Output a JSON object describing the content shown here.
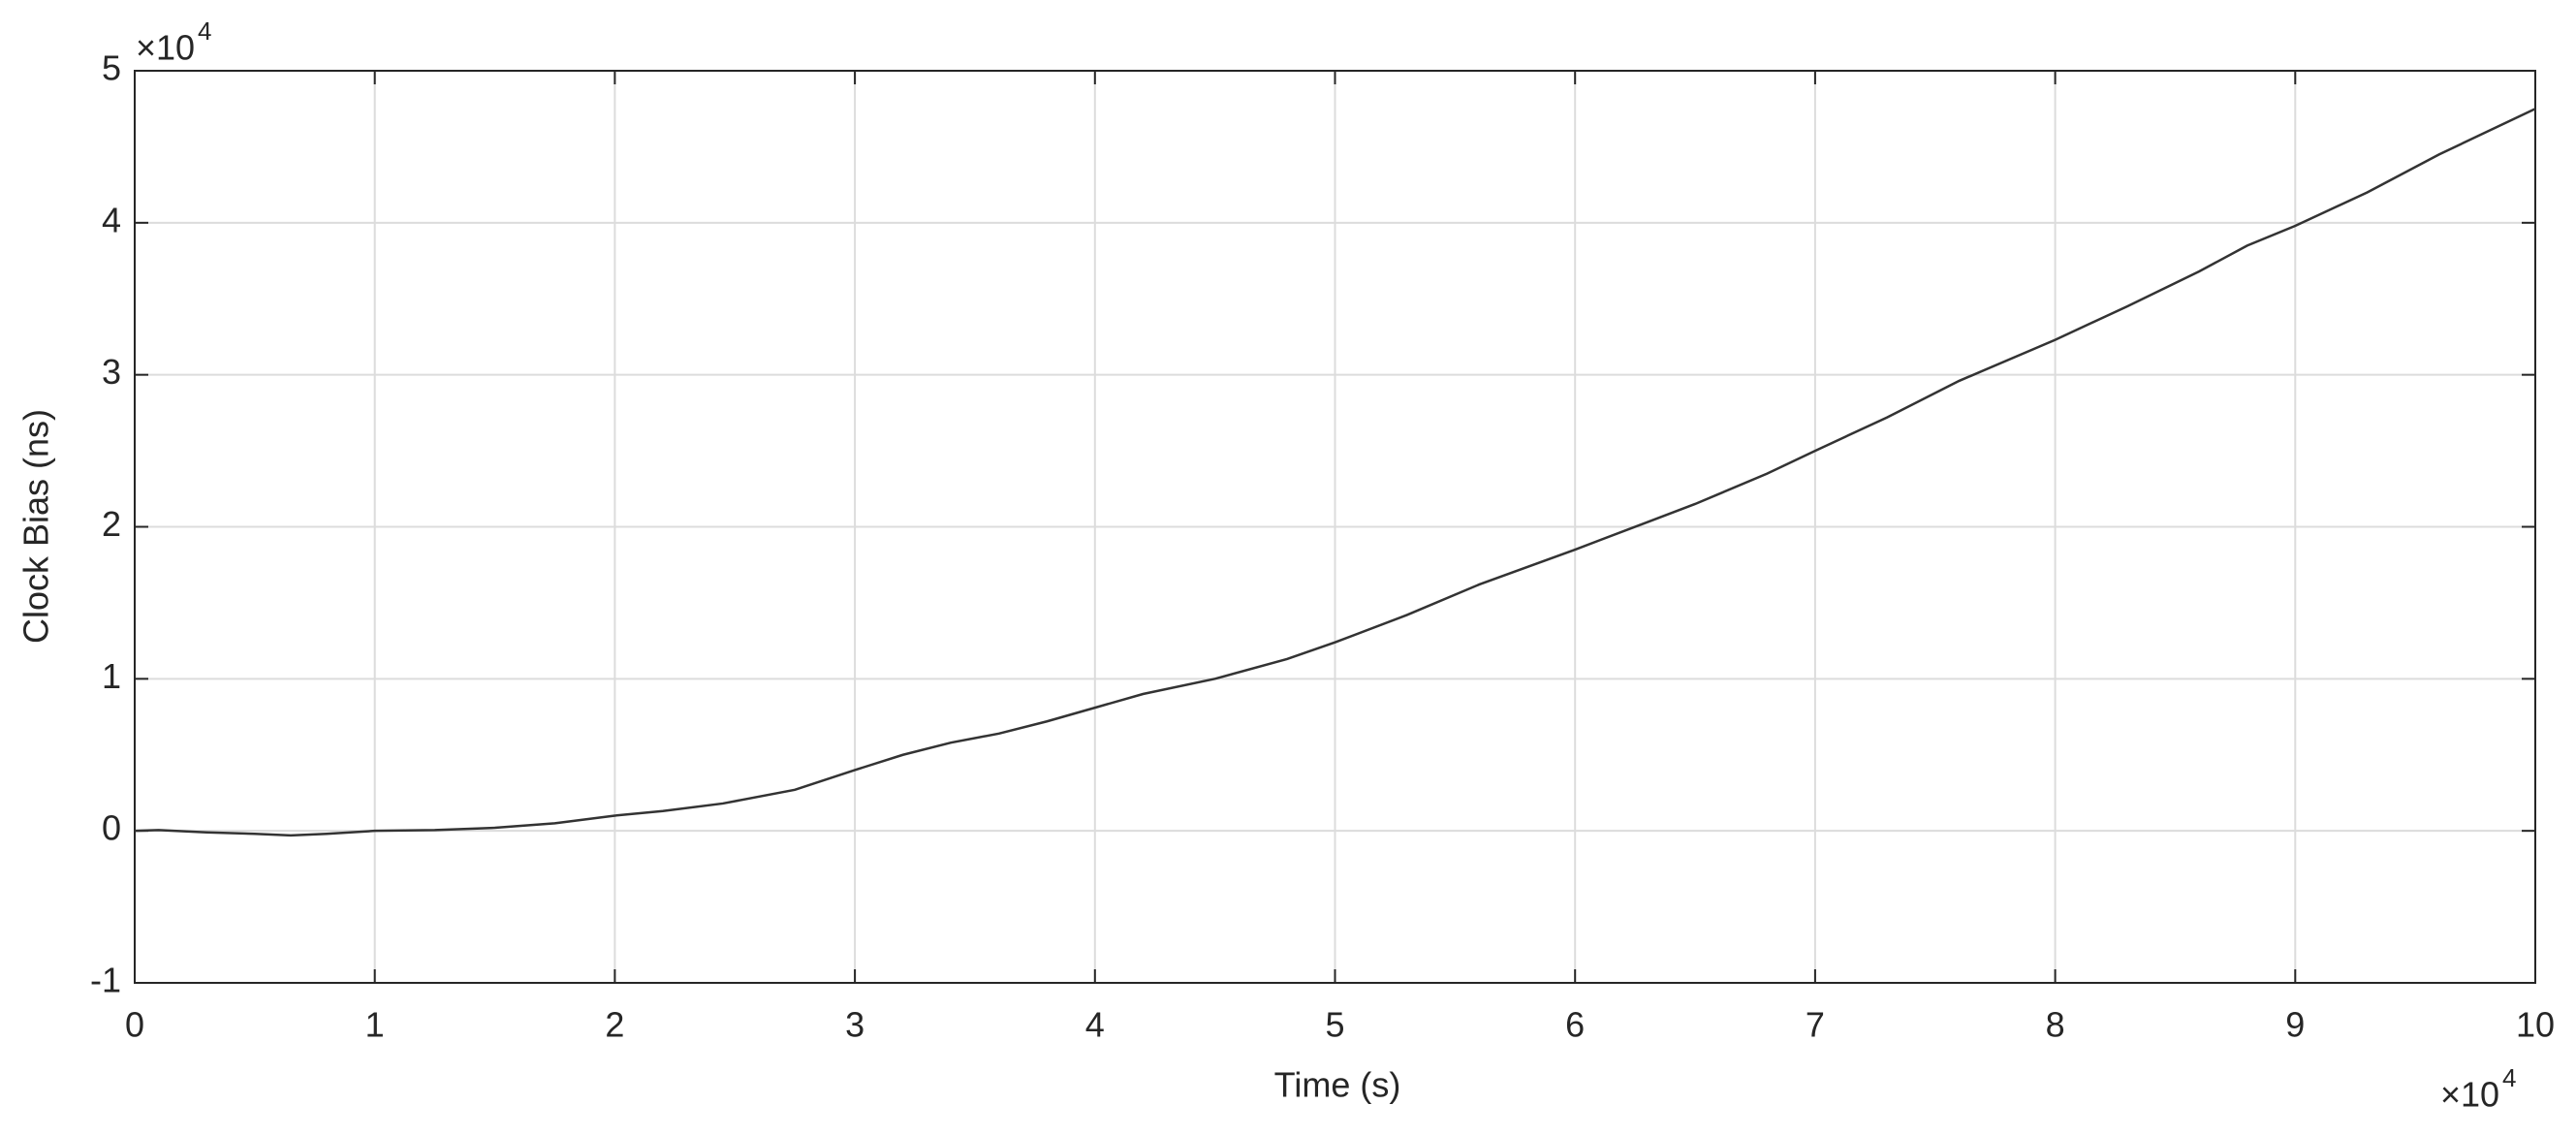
{
  "chart_data": {
    "type": "line",
    "x_label": "Time (s)",
    "y_label": "Clock Bias (ns)",
    "x_multiplier": {
      "base": "×10",
      "exponent": "4"
    },
    "y_multiplier": {
      "base": "×10",
      "exponent": "4"
    },
    "xlim": [
      0,
      10
    ],
    "ylim": [
      -1,
      5
    ],
    "xticks": [
      0,
      1,
      2,
      3,
      4,
      5,
      6,
      7,
      8,
      9,
      10
    ],
    "yticks": [
      -1,
      0,
      1,
      2,
      3,
      4,
      5
    ],
    "grid": true,
    "x": [
      0,
      0.1,
      0.3,
      0.5,
      0.65,
      0.8,
      1.0,
      1.25,
      1.5,
      1.75,
      2.0,
      2.2,
      2.45,
      2.75,
      3.0,
      3.2,
      3.4,
      3.6,
      3.8,
      4.0,
      4.2,
      4.5,
      4.8,
      5.0,
      5.3,
      5.6,
      6.0,
      6.3,
      6.5,
      6.8,
      7.0,
      7.3,
      7.6,
      8.0,
      8.3,
      8.6,
      8.8,
      9.0,
      9.3,
      9.6,
      10
    ],
    "series": [
      {
        "color": "#333333",
        "values": [
          0,
          0.005,
          -0.01,
          -0.02,
          -0.03,
          -0.02,
          0.0,
          0.005,
          0.02,
          0.05,
          0.1,
          0.13,
          0.18,
          0.27,
          0.4,
          0.5,
          0.58,
          0.64,
          0.72,
          0.81,
          0.9,
          1.0,
          1.13,
          1.24,
          1.42,
          1.62,
          1.85,
          2.03,
          2.15,
          2.35,
          2.5,
          2.72,
          2.96,
          3.23,
          3.45,
          3.68,
          3.85,
          3.98,
          4.2,
          4.45,
          4.75
        ]
      }
    ]
  }
}
